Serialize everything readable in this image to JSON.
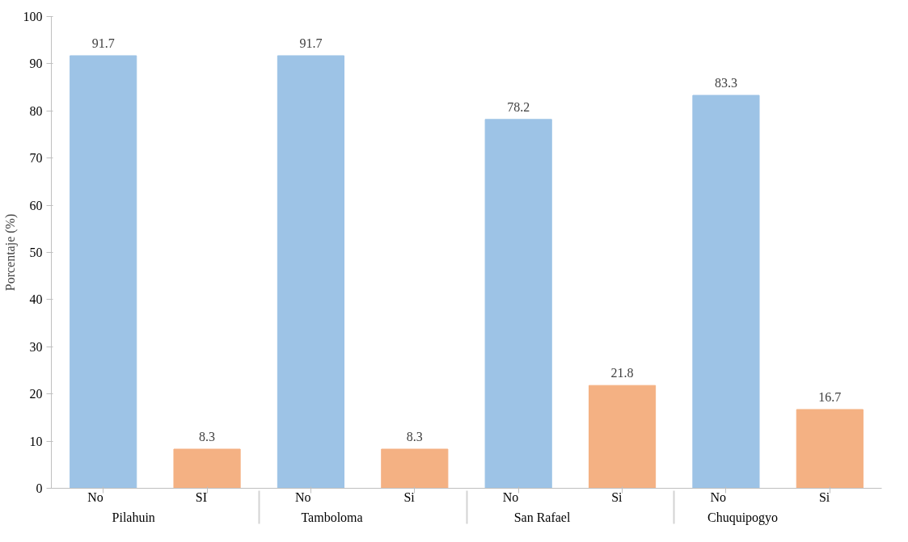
{
  "chart_data": {
    "type": "bar",
    "ylabel": "Porcentaje (%)",
    "categories": [
      "No",
      "SI",
      "No",
      "Si",
      "No",
      "Si",
      "No",
      "Si"
    ],
    "values": [
      91.7,
      8.3,
      91.7,
      8.3,
      78.2,
      21.8,
      83.3,
      16.7
    ],
    "colors": [
      "#9dc3e6",
      "#f4b183",
      "#9dc3e6",
      "#f4b183",
      "#9dc3e6",
      "#f4b183",
      "#9dc3e6",
      "#f4b183"
    ],
    "annotations": [
      "Pilahuin",
      "Tamboloma",
      "San Rafael",
      "Chuquipogyo"
    ],
    "ylim": [
      0,
      100
    ],
    "yticks": [
      0,
      10,
      20,
      30,
      40,
      50,
      60,
      70,
      80,
      90,
      100
    ],
    "data_labels": true,
    "grid": false
  }
}
